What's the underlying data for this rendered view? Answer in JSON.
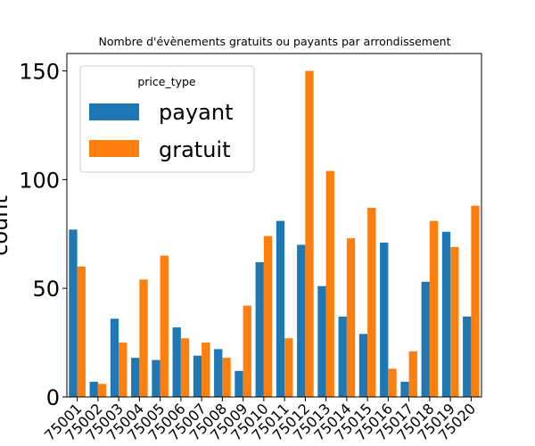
{
  "chart_data": {
    "type": "bar",
    "title": "Nombre d'évènements gratuits ou payants par arrondissement",
    "xlabel": "",
    "ylabel": "count",
    "categories": [
      "75001",
      "75002",
      "75003",
      "75004",
      "75005",
      "75006",
      "75007",
      "75008",
      "75009",
      "75010",
      "75011",
      "75012",
      "75013",
      "75014",
      "75015",
      "75016",
      "75017",
      "75018",
      "75019",
      "75020"
    ],
    "series": [
      {
        "name": "payant",
        "color": "#1f77b4",
        "values": [
          77,
          7,
          36,
          18,
          17,
          32,
          19,
          22,
          12,
          62,
          81,
          70,
          51,
          37,
          29,
          71,
          7,
          53,
          76,
          37
        ]
      },
      {
        "name": "gratuit",
        "color": "#ff7f0e",
        "values": [
          60,
          6,
          25,
          54,
          65,
          27,
          25,
          18,
          42,
          74,
          27,
          150,
          104,
          73,
          87,
          13,
          21,
          81,
          69,
          88
        ]
      }
    ],
    "ylim": [
      0,
      158
    ],
    "yticks": [
      0,
      50,
      100,
      150
    ],
    "legend": {
      "title": "price_type",
      "placement": "top-left"
    },
    "grid": false
  }
}
